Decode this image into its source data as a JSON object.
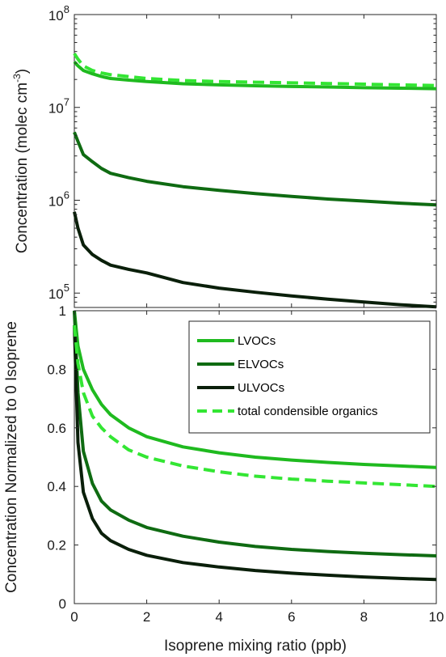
{
  "colors": {
    "LVOCs": "#1fba1f",
    "ELVOCs": "#0f6b12",
    "ULVOCs": "#0a1f0a",
    "total": "#33e633"
  },
  "chart_data": [
    {
      "type": "line",
      "title": "",
      "xlabel": "",
      "ylabel": "Concentration (molec cm",
      "ylabel_sup": "-3",
      "ylabel_suffix": ")",
      "yscale": "log",
      "xlim": [
        0,
        10
      ],
      "ylim": [
        70000,
        100000000
      ],
      "xticks": [
        0,
        2,
        4,
        6,
        8,
        10
      ],
      "yticks": [
        {
          "value": 100000,
          "base": "10",
          "exp": "5"
        },
        {
          "value": 1000000,
          "base": "10",
          "exp": "6"
        },
        {
          "value": 10000000,
          "base": "10",
          "exp": "7"
        },
        {
          "value": 100000000,
          "base": "10",
          "exp": "8"
        }
      ],
      "grid": false,
      "series": [
        {
          "key": "total",
          "style": "dashed",
          "x": [
            0,
            0.1,
            0.25,
            0.5,
            0.75,
            1,
            1.5,
            2,
            3,
            4,
            5,
            6,
            7,
            8,
            9,
            10
          ],
          "y": [
            38000000,
            33000000,
            28000000,
            25000000,
            23500000,
            22500000,
            21500000,
            20500000,
            19500000,
            19000000,
            18700000,
            18400000,
            18100000,
            17800000,
            17500000,
            17200000
          ]
        },
        {
          "key": "LVOCs",
          "style": "solid",
          "x": [
            0,
            0.1,
            0.25,
            0.5,
            0.75,
            1,
            1.5,
            2,
            3,
            4,
            5,
            6,
            7,
            8,
            9,
            10
          ],
          "y": [
            31000000,
            28000000,
            25000000,
            23000000,
            21500000,
            20500000,
            19700000,
            19000000,
            18000000,
            17500000,
            17100000,
            16800000,
            16600000,
            16300000,
            16100000,
            15900000
          ]
        },
        {
          "key": "ELVOCs",
          "style": "solid",
          "x": [
            0,
            0.1,
            0.25,
            0.5,
            0.75,
            1,
            1.5,
            2,
            3,
            4,
            5,
            6,
            7,
            8,
            9,
            10
          ],
          "y": [
            5400000,
            4300000,
            3100000,
            2600000,
            2200000,
            1950000,
            1750000,
            1600000,
            1400000,
            1280000,
            1180000,
            1100000,
            1030000,
            980000,
            930000,
            890000
          ]
        },
        {
          "key": "ULVOCs",
          "style": "solid",
          "x": [
            0,
            0.1,
            0.25,
            0.5,
            0.75,
            1,
            1.5,
            2,
            3,
            4,
            5,
            6,
            7,
            8,
            9,
            10
          ],
          "y": [
            750000,
            500000,
            330000,
            260000,
            225000,
            200000,
            180000,
            165000,
            130000,
            113000,
            102000,
            93000,
            86000,
            80000,
            75000,
            71000
          ]
        }
      ]
    },
    {
      "type": "line",
      "title": "",
      "xlabel": "Isoprene mixing ratio (ppb)",
      "ylabel": "Concentration Normalized to 0 Isoprene",
      "yscale": "linear",
      "xlim": [
        0,
        10
      ],
      "ylim": [
        0,
        1
      ],
      "xticks": [
        0,
        2,
        4,
        6,
        8,
        10
      ],
      "yticks": [
        0,
        0.2,
        0.4,
        0.6,
        0.8,
        1
      ],
      "ytick_labels": [
        "0",
        "0.2",
        "0.4",
        "0.6",
        "0.8",
        "1"
      ],
      "grid": false,
      "legend_position": "top-right",
      "series": [
        {
          "key": "LVOCs",
          "name": "LVOCs",
          "style": "solid",
          "x": [
            0,
            0.1,
            0.25,
            0.5,
            0.75,
            1,
            1.5,
            2,
            3,
            4,
            5,
            6,
            7,
            8,
            9,
            10
          ],
          "y": [
            1.0,
            0.88,
            0.8,
            0.73,
            0.68,
            0.645,
            0.6,
            0.57,
            0.535,
            0.515,
            0.5,
            0.49,
            0.482,
            0.475,
            0.47,
            0.465
          ]
        },
        {
          "key": "ELVOCs",
          "name": "ELVOCs",
          "style": "solid",
          "x": [
            0,
            0.1,
            0.25,
            0.5,
            0.75,
            1,
            1.5,
            2,
            3,
            4,
            5,
            6,
            7,
            8,
            9,
            10
          ],
          "y": [
            1.0,
            0.72,
            0.52,
            0.41,
            0.35,
            0.32,
            0.285,
            0.26,
            0.23,
            0.21,
            0.195,
            0.185,
            0.178,
            0.172,
            0.167,
            0.163
          ]
        },
        {
          "key": "ULVOCs",
          "name": "ULVOCs",
          "style": "solid",
          "x": [
            0,
            0.1,
            0.25,
            0.5,
            0.75,
            1,
            1.5,
            2,
            3,
            4,
            5,
            6,
            7,
            8,
            9,
            10
          ],
          "y": [
            0.95,
            0.55,
            0.38,
            0.29,
            0.24,
            0.215,
            0.185,
            0.165,
            0.14,
            0.125,
            0.113,
            0.104,
            0.097,
            0.091,
            0.086,
            0.082
          ]
        },
        {
          "key": "total",
          "name": "total condensible organics",
          "style": "dashed",
          "x": [
            0,
            0.1,
            0.25,
            0.5,
            0.75,
            1,
            1.5,
            2,
            3,
            4,
            5,
            6,
            7,
            8,
            9,
            10
          ],
          "y": [
            0.95,
            0.82,
            0.72,
            0.64,
            0.6,
            0.57,
            0.525,
            0.5,
            0.47,
            0.45,
            0.435,
            0.425,
            0.418,
            0.412,
            0.406,
            0.4
          ]
        }
      ]
    }
  ]
}
